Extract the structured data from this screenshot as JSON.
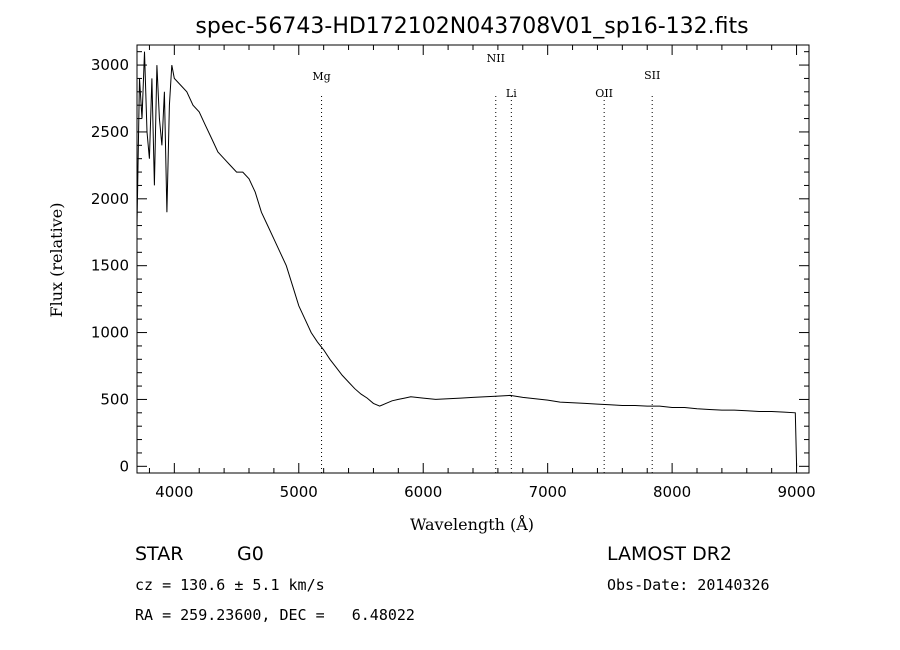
{
  "chart_data": {
    "type": "line",
    "title": "spec-56743-HD172102N043708V01_sp16-132.fits",
    "xlabel": "Wavelength (Å)",
    "ylabel": "Flux (relative)",
    "xlim": [
      3700,
      9100
    ],
    "ylim": [
      -50,
      3150
    ],
    "x_ticks": [
      4000,
      5000,
      6000,
      7000,
      8000,
      9000
    ],
    "y_ticks": [
      0,
      500,
      1000,
      1500,
      2000,
      2500,
      3000
    ],
    "x_tick_labels": [
      "4000",
      "5000",
      "6000",
      "7000",
      "8000",
      "9000"
    ],
    "y_tick_labels": [
      "0",
      "500",
      "1000",
      "1500",
      "2000",
      "2500",
      "3000"
    ],
    "grid": false,
    "series": [
      {
        "values_description_free": true,
        "x": [
          3700,
          3720,
          3740,
          3760,
          3780,
          3800,
          3820,
          3840,
          3860,
          3880,
          3900,
          3920,
          3940,
          3960,
          3980,
          4000,
          4050,
          4100,
          4150,
          4200,
          4250,
          4300,
          4350,
          4400,
          4450,
          4500,
          4550,
          4600,
          4650,
          4700,
          4750,
          4800,
          4850,
          4900,
          4950,
          5000,
          5050,
          5100,
          5150,
          5200,
          5250,
          5300,
          5350,
          5400,
          5450,
          5500,
          5550,
          5600,
          5650,
          5700,
          5750,
          5800,
          5850,
          5900,
          6000,
          6100,
          6200,
          6300,
          6400,
          6500,
          6600,
          6700,
          6800,
          6900,
          7000,
          7100,
          7200,
          7300,
          7400,
          7500,
          7600,
          7700,
          7800,
          7900,
          8000,
          8100,
          8200,
          8300,
          8400,
          8500,
          8600,
          8700,
          8800,
          8900,
          8990,
          9000
        ],
        "y": [
          1800,
          2900,
          2600,
          3100,
          2500,
          2300,
          2900,
          2100,
          3000,
          2600,
          2400,
          2800,
          1900,
          2700,
          3000,
          2900,
          2850,
          2800,
          2700,
          2650,
          2550,
          2450,
          2350,
          2300,
          2250,
          2200,
          2200,
          2150,
          2050,
          1900,
          1800,
          1700,
          1600,
          1500,
          1350,
          1200,
          1100,
          1000,
          930,
          870,
          800,
          740,
          680,
          630,
          580,
          540,
          510,
          470,
          450,
          470,
          490,
          500,
          510,
          520,
          510,
          500,
          505,
          510,
          515,
          520,
          525,
          530,
          515,
          505,
          495,
          480,
          475,
          470,
          465,
          460,
          455,
          455,
          450,
          450,
          440,
          440,
          430,
          425,
          420,
          420,
          415,
          410,
          410,
          405,
          400,
          0
        ]
      }
    ],
    "spectral_lines": [
      {
        "label": "Mg",
        "x": 5183
      },
      {
        "label": "NII",
        "x": 6583
      },
      {
        "label": "Li",
        "x": 6708
      },
      {
        "label": "OII",
        "x": 7454
      },
      {
        "label": "SII",
        "x": 7840
      }
    ]
  },
  "info": {
    "object_class": "STAR",
    "subclass": "G0",
    "survey": "LAMOST DR2",
    "cz": "cz = 130.6 ± 5.1 km/s",
    "obs_date": "Obs-Date: 20140326",
    "coords": "RA = 259.23600, DEC =   6.48022"
  }
}
